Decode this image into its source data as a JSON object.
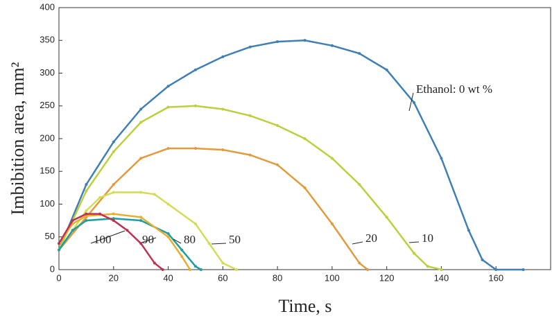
{
  "chart_data": {
    "type": "line",
    "x_label": "Time, s",
    "y_label": "Imbibition area, mm²",
    "xlim": [
      0,
      180
    ],
    "ylim": [
      0,
      400
    ],
    "xticks": [
      0,
      20,
      40,
      60,
      80,
      100,
      120,
      140,
      160
    ],
    "yticks": [
      0,
      50,
      100,
      150,
      200,
      250,
      300,
      350,
      400
    ],
    "series": [
      {
        "name": "Ethanol: 0 wt %",
        "color": "#3f7fb5",
        "x": [
          0,
          10,
          20,
          30,
          40,
          50,
          60,
          70,
          80,
          90,
          100,
          110,
          120,
          130,
          140,
          150,
          155,
          160,
          170
        ],
        "values": [
          30,
          130,
          195,
          245,
          280,
          305,
          325,
          340,
          348,
          350,
          342,
          330,
          305,
          255,
          170,
          60,
          15,
          0,
          0
        ]
      },
      {
        "name": "10",
        "color": "#bccf3c",
        "x": [
          0,
          10,
          20,
          30,
          40,
          50,
          60,
          70,
          80,
          90,
          100,
          110,
          120,
          130,
          135,
          140
        ],
        "values": [
          30,
          120,
          180,
          225,
          248,
          250,
          245,
          235,
          220,
          200,
          170,
          130,
          80,
          25,
          5,
          0
        ]
      },
      {
        "name": "20",
        "color": "#e39a3c",
        "x": [
          0,
          10,
          20,
          30,
          40,
          50,
          60,
          70,
          80,
          90,
          100,
          110,
          113
        ],
        "values": [
          30,
          80,
          130,
          170,
          185,
          185,
          183,
          175,
          160,
          125,
          70,
          10,
          0
        ]
      },
      {
        "name": "50",
        "color": "#d2dc55",
        "x": [
          0,
          5,
          10,
          15,
          20,
          30,
          35,
          40,
          50,
          55,
          60,
          65
        ],
        "values": [
          30,
          60,
          90,
          110,
          118,
          118,
          115,
          100,
          70,
          40,
          10,
          0
        ]
      },
      {
        "name": "80",
        "color": "#1f9e9e",
        "x": [
          0,
          5,
          10,
          20,
          30,
          40,
          45,
          50,
          52
        ],
        "values": [
          30,
          60,
          75,
          78,
          75,
          55,
          30,
          5,
          0
        ]
      },
      {
        "name": "90",
        "color": "#e6ad2e",
        "x": [
          0,
          5,
          10,
          20,
          30,
          40,
          45,
          48
        ],
        "values": [
          40,
          70,
          82,
          85,
          80,
          50,
          20,
          0
        ]
      },
      {
        "name": "100",
        "color": "#c0304f",
        "x": [
          0,
          5,
          10,
          15,
          20,
          25,
          30,
          35,
          38
        ],
        "values": [
          40,
          75,
          85,
          85,
          75,
          60,
          40,
          10,
          0
        ]
      }
    ]
  }
}
